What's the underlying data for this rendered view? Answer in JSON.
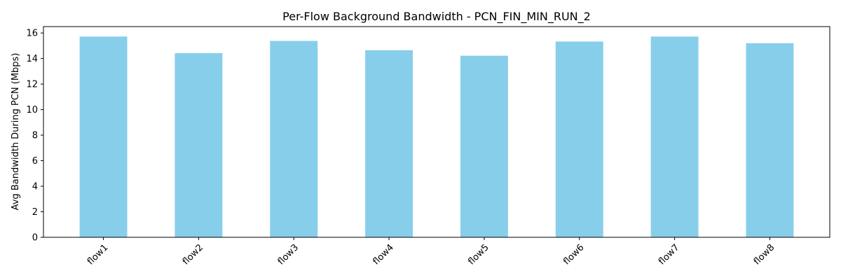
{
  "chart_data": {
    "type": "bar",
    "title": "Per-Flow Background Bandwidth - PCN_FIN_MIN_RUN_2",
    "xlabel": "",
    "ylabel": "Avg Bandwidth During PCN (Mbps)",
    "categories": [
      "flow1",
      "flow2",
      "flow3",
      "flow4",
      "flow5",
      "flow6",
      "flow7",
      "flow8"
    ],
    "values": [
      15.72,
      14.42,
      15.38,
      14.65,
      14.22,
      15.33,
      15.72,
      15.2
    ],
    "ylim": [
      0,
      16.5
    ],
    "yticks": [
      0,
      2,
      4,
      6,
      8,
      10,
      12,
      14,
      16
    ],
    "ytick_labels": [
      "0",
      "2",
      "4",
      "6",
      "8",
      "10",
      "12",
      "14",
      "16"
    ],
    "bar_color": "#87CEEB",
    "grid": false,
    "legend": "none"
  }
}
